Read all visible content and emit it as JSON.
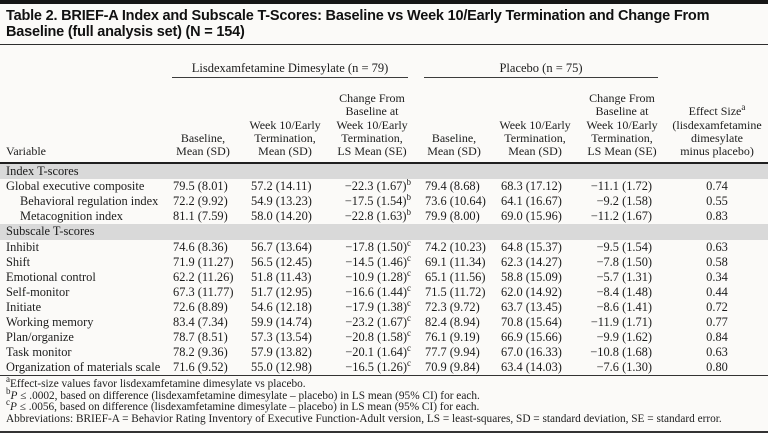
{
  "table": {
    "title": "Table 2. BRIEF-A Index and Subscale T-Scores: Baseline vs Week 10/Early Termination and Change From Baseline (full analysis set) (N = 154)",
    "groups": [
      {
        "label": "Lisdexamfetamine Dimesylate (n = 79)"
      },
      {
        "label": "Placebo (n = 75)"
      }
    ],
    "columns": {
      "variable": "Variable",
      "baseline": "Baseline,\nMean (SD)",
      "week10": "Week 10/Early\nTermination,\nMean (SD)",
      "change": "Change From\nBaseline at\nWeek 10/Early\nTermination,\nLS Mean (SE)",
      "effect_line1": "Effect Size",
      "effect_sup": "a",
      "effect_rest": "(lisdexamfetamine\ndimesylate\nminus placebo)"
    },
    "sections": [
      {
        "header": "Index T-scores",
        "rows": [
          {
            "variable": "Global executive composite",
            "indent": false,
            "ldx_baseline": "79.5 (8.01)",
            "ldx_week10": "57.2 (14.11)",
            "ldx_change": "−22.3 (1.67)",
            "change_sup": "b",
            "pbo_baseline": "79.4 (8.68)",
            "pbo_week10": "68.3 (17.12)",
            "pbo_change": "−11.1 (1.72)",
            "effect_size": "0.74"
          },
          {
            "variable": "Behavioral regulation index",
            "indent": true,
            "ldx_baseline": "72.2 (9.92)",
            "ldx_week10": "54.9 (13.23)",
            "ldx_change": "−17.5 (1.54)",
            "change_sup": "b",
            "pbo_baseline": "73.6 (10.64)",
            "pbo_week10": "64.1 (16.67)",
            "pbo_change": "−9.2 (1.58)",
            "effect_size": "0.55"
          },
          {
            "variable": "Metacognition index",
            "indent": true,
            "ldx_baseline": "81.1 (7.59)",
            "ldx_week10": "58.0 (14.20)",
            "ldx_change": "−22.8 (1.63)",
            "change_sup": "b",
            "pbo_baseline": "79.9 (8.00)",
            "pbo_week10": "69.0 (15.96)",
            "pbo_change": "−11.2 (1.67)",
            "effect_size": "0.83"
          }
        ]
      },
      {
        "header": "Subscale T-scores",
        "rows": [
          {
            "variable": "Inhibit",
            "indent": false,
            "ldx_baseline": "74.6 (8.36)",
            "ldx_week10": "56.7 (13.64)",
            "ldx_change": "−17.8 (1.50)",
            "change_sup": "c",
            "pbo_baseline": "74.2 (10.23)",
            "pbo_week10": "64.8 (15.37)",
            "pbo_change": "−9.5 (1.54)",
            "effect_size": "0.63"
          },
          {
            "variable": "Shift",
            "indent": false,
            "ldx_baseline": "71.9 (11.27)",
            "ldx_week10": "56.5 (12.45)",
            "ldx_change": "−14.5 (1.46)",
            "change_sup": "c",
            "pbo_baseline": "69.1 (11.34)",
            "pbo_week10": "62.3 (14.27)",
            "pbo_change": "−7.8 (1.50)",
            "effect_size": "0.58"
          },
          {
            "variable": "Emotional control",
            "indent": false,
            "ldx_baseline": "62.2 (11.26)",
            "ldx_week10": "51.8 (11.43)",
            "ldx_change": "−10.9 (1.28)",
            "change_sup": "c",
            "pbo_baseline": "65.1 (11.56)",
            "pbo_week10": "58.8 (15.09)",
            "pbo_change": "−5.7 (1.31)",
            "effect_size": "0.34"
          },
          {
            "variable": "Self-monitor",
            "indent": false,
            "ldx_baseline": "67.3 (11.77)",
            "ldx_week10": "51.7 (12.95)",
            "ldx_change": "−16.6 (1.44)",
            "change_sup": "c",
            "pbo_baseline": "71.5 (11.72)",
            "pbo_week10": "62.0 (14.92)",
            "pbo_change": "−8.4 (1.48)",
            "effect_size": "0.44"
          },
          {
            "variable": "Initiate",
            "indent": false,
            "ldx_baseline": "72.6 (8.89)",
            "ldx_week10": "54.6 (12.18)",
            "ldx_change": "−17.9 (1.38)",
            "change_sup": "c",
            "pbo_baseline": "72.3 (9.72)",
            "pbo_week10": "63.7 (13.45)",
            "pbo_change": "−8.6 (1.41)",
            "effect_size": "0.72"
          },
          {
            "variable": "Working memory",
            "indent": false,
            "ldx_baseline": "83.4 (7.34)",
            "ldx_week10": "59.9 (14.74)",
            "ldx_change": "−23.2 (1.67)",
            "change_sup": "c",
            "pbo_baseline": "82.4 (8.94)",
            "pbo_week10": "70.8 (15.64)",
            "pbo_change": "−11.9 (1.71)",
            "effect_size": "0.77"
          },
          {
            "variable": "Plan/organize",
            "indent": false,
            "ldx_baseline": "78.7 (8.51)",
            "ldx_week10": "57.3 (13.54)",
            "ldx_change": "−20.8 (1.58)",
            "change_sup": "c",
            "pbo_baseline": "76.1 (9.19)",
            "pbo_week10": "66.9 (15.66)",
            "pbo_change": "−9.9 (1.62)",
            "effect_size": "0.84"
          },
          {
            "variable": "Task monitor",
            "indent": false,
            "ldx_baseline": "78.2 (9.36)",
            "ldx_week10": "57.9 (13.82)",
            "ldx_change": "−20.1 (1.64)",
            "change_sup": "c",
            "pbo_baseline": "77.7 (9.94)",
            "pbo_week10": "67.0 (16.33)",
            "pbo_change": "−10.8 (1.68)",
            "effect_size": "0.63"
          },
          {
            "variable": "Organization of materials scale",
            "indent": false,
            "ldx_baseline": "71.6 (9.52)",
            "ldx_week10": "55.0 (12.98)",
            "ldx_change": "−16.5 (1.26)",
            "change_sup": "c",
            "pbo_baseline": "70.9 (9.84)",
            "pbo_week10": "63.4 (14.03)",
            "pbo_change": "−7.6 (1.30)",
            "effect_size": "0.80"
          }
        ]
      }
    ],
    "footnotes": [
      {
        "sup": "a",
        "lead": "",
        "text": "Effect-size values favor lisdexamfetamine dimesylate vs placebo."
      },
      {
        "sup": "b",
        "lead": "P",
        "text": " ≤ .0002, based on difference (lisdexamfetamine dimesylate – placebo) in LS mean (95% CI) for each."
      },
      {
        "sup": "c",
        "lead": "P",
        "text": " ≤ .0056, based on difference (lisdexamfetamine dimesylate – placebo) in LS mean (95% CI) for each."
      },
      {
        "sup": "",
        "lead": "",
        "text": "Abbreviations: BRIEF-A = Behavior Rating Inventory of Executive Function-Adult version, LS = least-squares, SD = standard deviation, SE = standard error."
      }
    ]
  }
}
